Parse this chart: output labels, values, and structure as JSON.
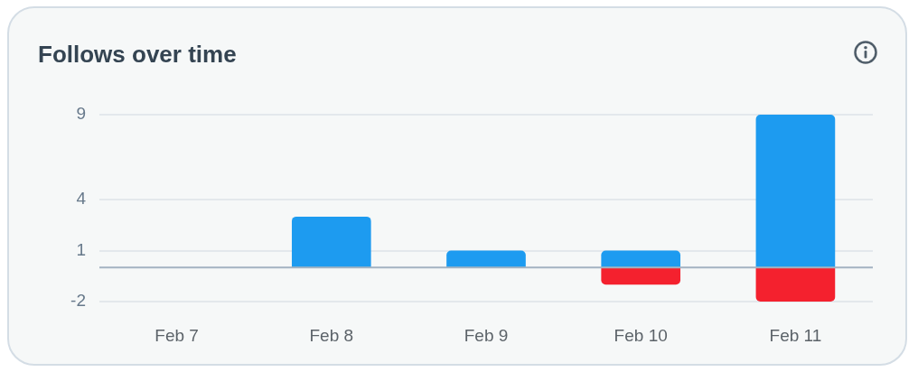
{
  "chart_data": {
    "type": "bar",
    "title": "Follows over time",
    "categories": [
      "Feb 7",
      "Feb 8",
      "Feb 9",
      "Feb 10",
      "Feb 11"
    ],
    "series": [
      {
        "color": "#1d9bf0",
        "values": [
          0,
          3,
          1,
          1,
          9
        ]
      },
      {
        "color": "#f4212e",
        "values": [
          0,
          0,
          0,
          -1,
          -2
        ]
      }
    ],
    "stacked": true,
    "ylim": [
      -2,
      9
    ],
    "yticks": [
      -2,
      1,
      4,
      9
    ],
    "grid": "y",
    "ref_lines": [
      {
        "axis": "y",
        "value": 0,
        "color": "#a3b3c2"
      }
    ]
  }
}
